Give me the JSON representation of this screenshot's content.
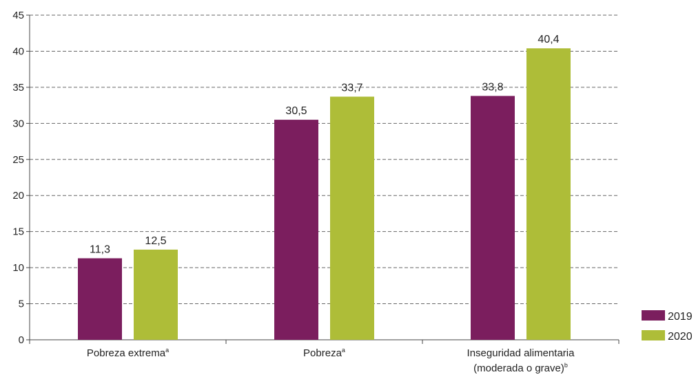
{
  "chart_data": {
    "type": "bar",
    "categories": [
      {
        "label": "Pobreza extrema",
        "sup": "a"
      },
      {
        "label": "Pobreza",
        "sup": "a"
      },
      {
        "label": "Inseguridad alimentaria",
        "label2": "(moderada o grave)",
        "sup": "b"
      }
    ],
    "series": [
      {
        "name": "2019",
        "color": "#7b1e5e",
        "values": [
          11.3,
          30.5,
          33.8
        ],
        "labels": [
          "11,3",
          "30,5",
          "33,8"
        ]
      },
      {
        "name": "2020",
        "color": "#aebd38",
        "values": [
          12.5,
          33.7,
          40.4
        ],
        "labels": [
          "12,5",
          "33,7",
          "40,4"
        ]
      }
    ],
    "ylim": [
      0,
      45
    ],
    "yticks": [
      0,
      5,
      10,
      15,
      20,
      25,
      30,
      35,
      40,
      45
    ],
    "grid": true,
    "legend_position": "bottom-right"
  }
}
